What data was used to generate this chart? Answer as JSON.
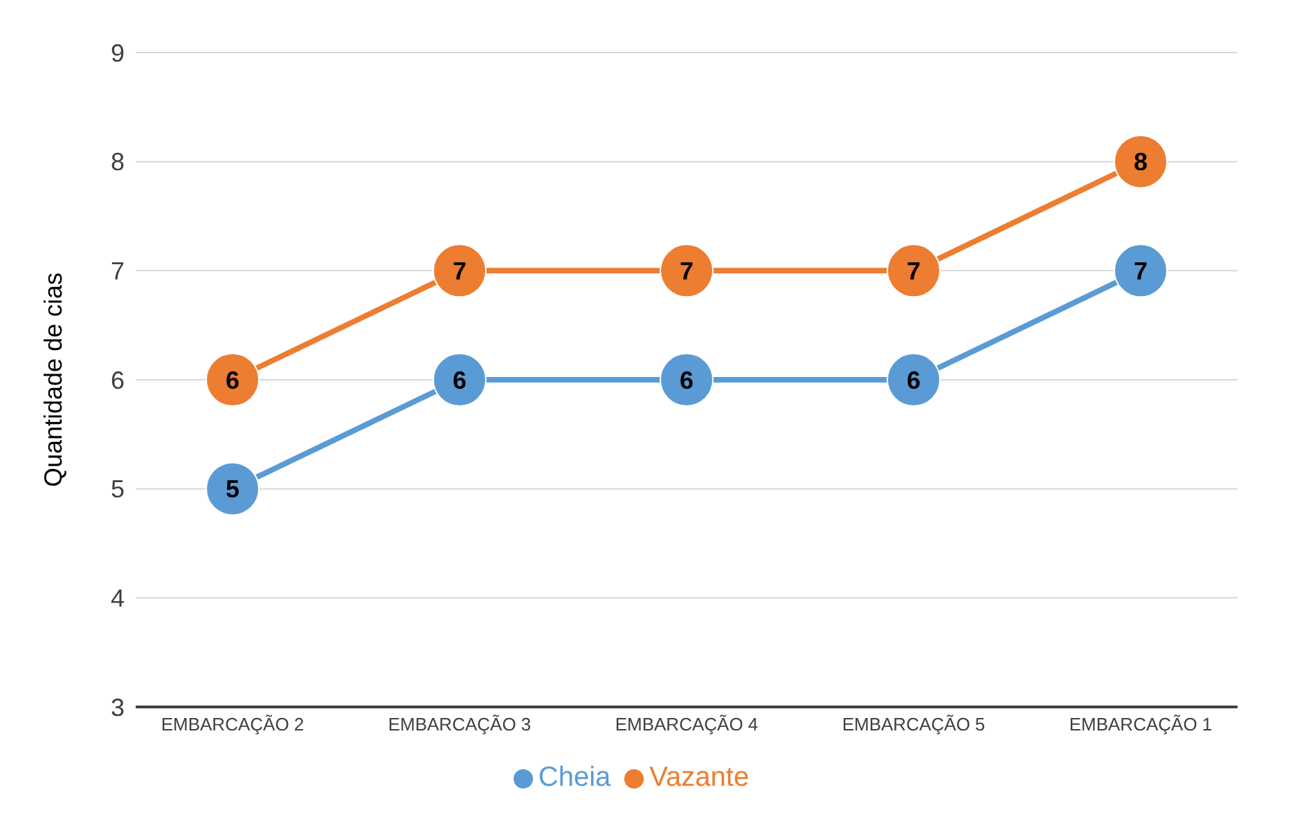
{
  "chart_data": {
    "type": "line",
    "ylabel": "Quantidade de cias",
    "categories": [
      "EMBARCAÇÃO 2",
      "EMBARCAÇÃO 3",
      "EMBARCAÇÃO 4",
      "EMBARCAÇÃO 5",
      "EMBARCAÇÃO 1"
    ],
    "series": [
      {
        "name": "Cheia",
        "color": "#5b9bd5",
        "values": [
          5,
          6,
          6,
          6,
          7
        ]
      },
      {
        "name": "Vazante",
        "color": "#ed7d31",
        "values": [
          6,
          7,
          7,
          7,
          8
        ]
      }
    ],
    "ylim": [
      3,
      9
    ],
    "yticks": [
      3,
      4,
      5,
      6,
      7,
      8,
      9
    ],
    "grid": "y",
    "legend": "bottom",
    "marker": "circle",
    "data_labels": true,
    "line_style": "solid"
  }
}
